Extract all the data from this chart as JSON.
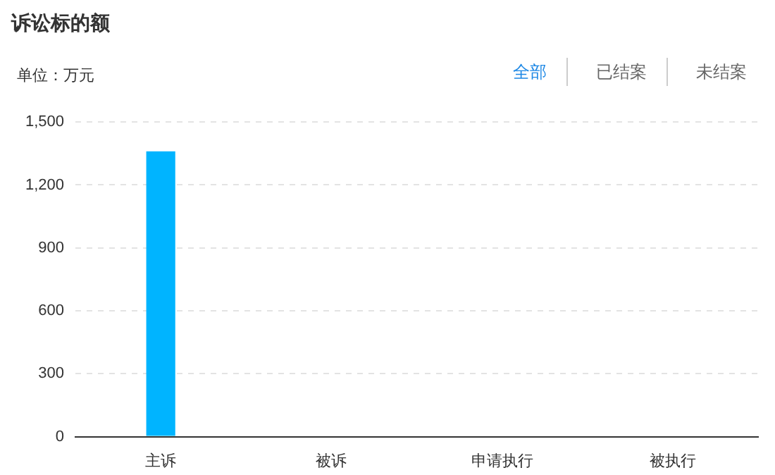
{
  "chart_data": {
    "type": "bar",
    "title": "诉讼标的额",
    "ylabel": "单位：万元",
    "annotations": [
      "全部",
      "已结案",
      "未结案"
    ],
    "categories": [
      "主诉",
      "被诉",
      "申请执行",
      "被执行"
    ],
    "values": [
      1360,
      0,
      0,
      0
    ],
    "color": "#00b4ff",
    "ylim": [
      0,
      1500
    ],
    "yticks": [
      0,
      300,
      600,
      900,
      {
        "value": 1200,
        "label": "1,200"
      },
      {
        "value": 1500,
        "label": "1,500"
      }
    ],
    "grid": "y",
    "legend": false
  }
}
